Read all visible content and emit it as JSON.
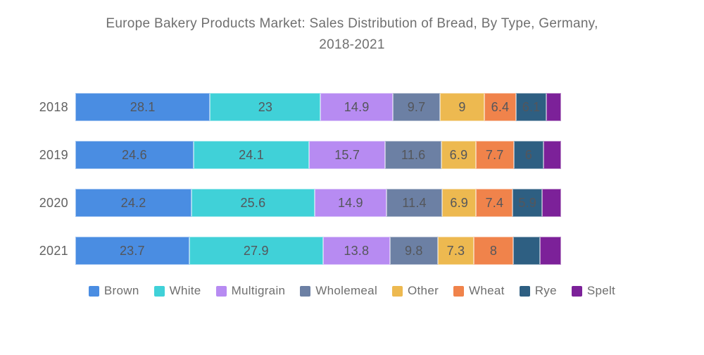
{
  "title": {
    "line1": "Europe Bakery Products Market: Sales Distribution of Bread, By Type, Germany,",
    "line2": "2018-2021"
  },
  "colors": {
    "background": "#FFFFFF",
    "title_text": "#6F6F6F",
    "axis_text": "#616161",
    "value_label_text": "#54565B",
    "legend_text": "#6E6E6E"
  },
  "chart_data": {
    "type": "bar",
    "subtype": "horizontal-stacked",
    "title": "Europe Bakery Products Market: Sales Distribution of Bread, By Type, Germany, 2018-2021",
    "categories": [
      "2018",
      "2019",
      "2020",
      "2021"
    ],
    "series": [
      {
        "name": "Brown",
        "color": "#4A8DE2",
        "values": [
          28.1,
          24.6,
          24.2,
          23.7
        ],
        "labels": [
          "28.1",
          "24.6",
          "24.2",
          "23.7"
        ]
      },
      {
        "name": "White",
        "color": "#40D1D8",
        "values": [
          23,
          24.1,
          25.6,
          27.9
        ],
        "labels": [
          "23",
          "24.1",
          "25.6",
          "27.9"
        ]
      },
      {
        "name": "Multigrain",
        "color": "#B78BF2",
        "values": [
          14.9,
          15.7,
          14.9,
          13.8
        ],
        "labels": [
          "14.9",
          "15.7",
          "14.9",
          "13.8"
        ]
      },
      {
        "name": "Wholemeal",
        "color": "#6C80A4",
        "values": [
          9.7,
          11.6,
          11.4,
          9.8
        ],
        "labels": [
          "9.7",
          "11.6",
          "11.4",
          "9.8"
        ]
      },
      {
        "name": "Other",
        "color": "#EDB950",
        "values": [
          9,
          6.9,
          6.9,
          7.3
        ],
        "labels": [
          "9",
          "6.9",
          "6.9",
          "7.3"
        ]
      },
      {
        "name": "Wheat",
        "color": "#F0834B",
        "values": [
          6.4,
          7.7,
          7.4,
          8
        ],
        "labels": [
          "6.4",
          "7.7",
          "7.4",
          "8"
        ]
      },
      {
        "name": "Rye",
        "color": "#2E5F82",
        "values": [
          6.1,
          6,
          5.9,
          5.3
        ],
        "labels": [
          "6.1",
          "6",
          "5.9",
          ""
        ]
      },
      {
        "name": "Spelt",
        "color": "#7C2199",
        "values": [
          2.8,
          3.4,
          3.7,
          4.2
        ],
        "labels": [
          "",
          "",
          "",
          ""
        ]
      }
    ],
    "xlabel": "",
    "ylabel": "",
    "xlim": [
      0,
      100
    ],
    "grid": false,
    "legend_position": "bottom"
  }
}
